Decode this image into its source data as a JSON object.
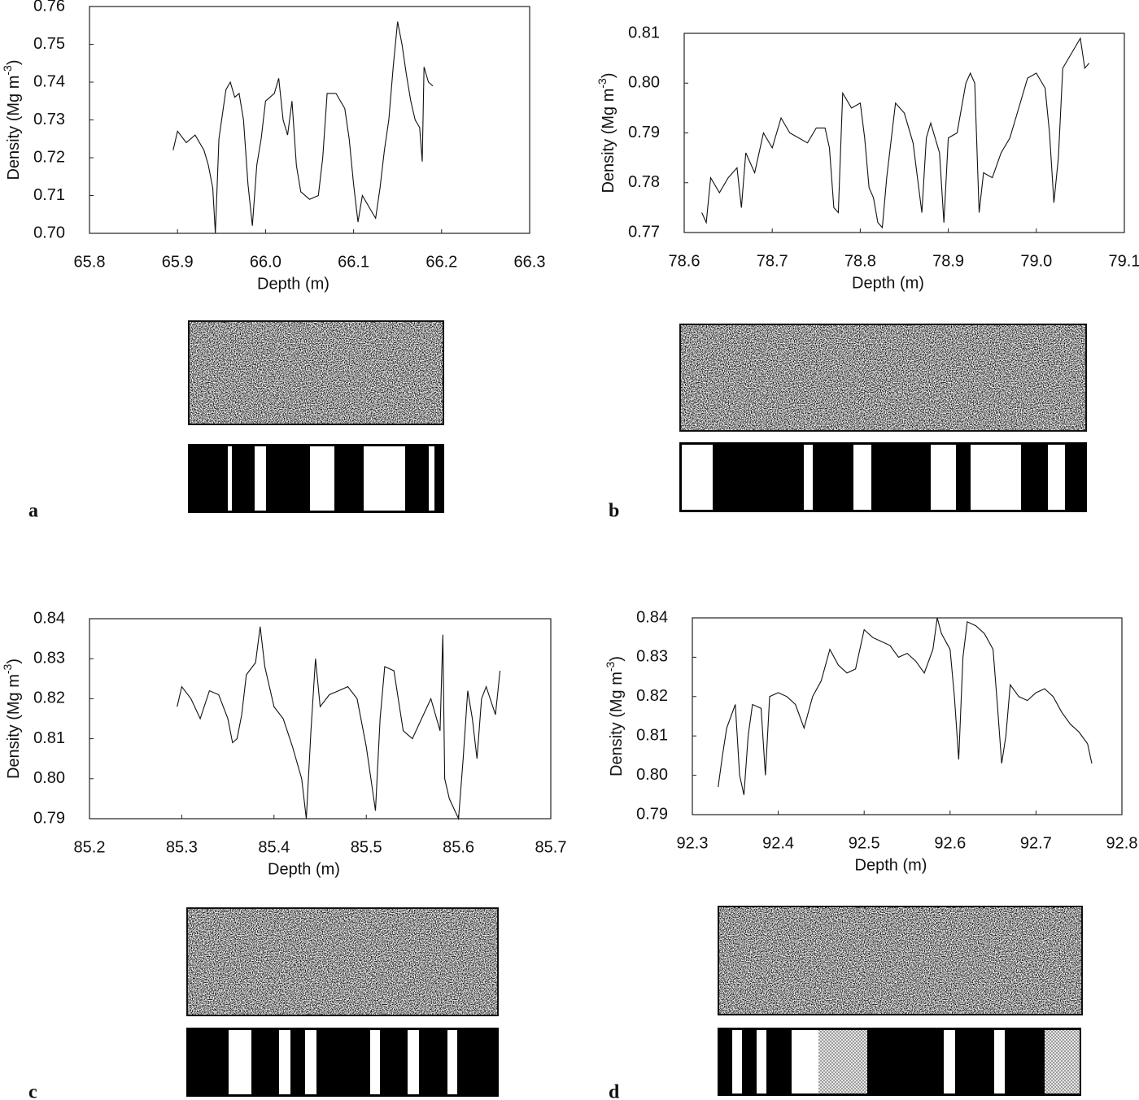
{
  "chart_data": [
    {
      "type": "line",
      "panel_label": "a",
      "xlabel": "Depth (m)",
      "ylabel": [
        "Density (Mg m",
        "-3",
        ")"
      ],
      "color": "#111111",
      "xlim": [
        65.8,
        66.3
      ],
      "xticks": [
        65.8,
        65.9,
        {
          "value": 66.0,
          "label": "66.0"
        },
        66.1,
        66.2,
        66.3
      ],
      "ylim": [
        0.7,
        0.76
      ],
      "yticks": [
        {
          "value": 0.7,
          "label": "0.70"
        },
        0.71,
        0.72,
        0.73,
        0.74,
        0.75,
        0.76
      ],
      "x": [
        65.895,
        65.9,
        65.91,
        65.92,
        65.93,
        65.935,
        65.94,
        65.943,
        65.947,
        65.955,
        65.96,
        65.965,
        65.97,
        65.975,
        65.98,
        65.985,
        65.99,
        65.995,
        66.0,
        66.01,
        66.015,
        66.02,
        66.025,
        66.03,
        66.035,
        66.04,
        66.05,
        66.06,
        66.065,
        66.07,
        66.08,
        66.09,
        66.095,
        66.1,
        66.105,
        66.11,
        66.12,
        66.125,
        66.13,
        66.135,
        66.14,
        66.145,
        66.15,
        66.155,
        66.16,
        66.165,
        66.17,
        66.175,
        66.178,
        66.18,
        66.185,
        66.19
      ],
      "values": [
        0.722,
        0.727,
        0.724,
        0.726,
        0.722,
        0.718,
        0.712,
        0.7,
        0.725,
        0.738,
        0.74,
        0.736,
        0.737,
        0.73,
        0.713,
        0.702,
        0.718,
        0.725,
        0.735,
        0.737,
        0.741,
        0.73,
        0.726,
        0.735,
        0.718,
        0.711,
        0.709,
        0.71,
        0.72,
        0.737,
        0.737,
        0.733,
        0.725,
        0.713,
        0.703,
        0.71,
        0.706,
        0.704,
        0.712,
        0.722,
        0.73,
        0.744,
        0.756,
        0.75,
        0.742,
        0.735,
        0.73,
        0.728,
        0.719,
        0.744,
        0.74,
        0.739
      ]
    },
    {
      "type": "line",
      "panel_label": "b",
      "xlabel": "Depth (m)",
      "ylabel": [
        "Density (Mg m",
        "-3",
        ")"
      ],
      "color": "#111111",
      "xlim": [
        78.6,
        79.1
      ],
      "xticks": [
        78.6,
        78.7,
        78.8,
        78.9,
        {
          "value": 79.0,
          "label": "79.0"
        },
        79.1
      ],
      "ylim": [
        0.77,
        0.81
      ],
      "yticks": [
        0.77,
        0.78,
        0.79,
        {
          "value": 0.8,
          "label": "0.80"
        },
        0.81
      ],
      "x": [
        78.62,
        78.625,
        78.63,
        78.64,
        78.65,
        78.66,
        78.665,
        78.67,
        78.68,
        78.69,
        78.7,
        78.71,
        78.72,
        78.73,
        78.74,
        78.75,
        78.76,
        78.765,
        78.77,
        78.775,
        78.78,
        78.79,
        78.8,
        78.805,
        78.81,
        78.815,
        78.82,
        78.825,
        78.83,
        78.84,
        78.85,
        78.86,
        78.87,
        78.875,
        78.88,
        78.89,
        78.895,
        78.9,
        78.91,
        78.92,
        78.925,
        78.93,
        78.935,
        78.94,
        78.95,
        78.96,
        78.97,
        78.98,
        78.99,
        79.0,
        79.01,
        79.015,
        79.02,
        79.025,
        79.03,
        79.04,
        79.05,
        79.055,
        79.06
      ],
      "values": [
        0.774,
        0.772,
        0.781,
        0.778,
        0.781,
        0.783,
        0.775,
        0.786,
        0.782,
        0.79,
        0.787,
        0.793,
        0.79,
        0.789,
        0.788,
        0.791,
        0.791,
        0.787,
        0.775,
        0.774,
        0.798,
        0.795,
        0.796,
        0.789,
        0.779,
        0.777,
        0.772,
        0.771,
        0.781,
        0.796,
        0.794,
        0.788,
        0.774,
        0.789,
        0.792,
        0.786,
        0.772,
        0.789,
        0.79,
        0.8,
        0.802,
        0.8,
        0.774,
        0.782,
        0.781,
        0.786,
        0.789,
        0.795,
        0.801,
        0.802,
        0.799,
        0.79,
        0.776,
        0.785,
        0.803,
        0.806,
        0.809,
        0.803,
        0.804
      ]
    },
    {
      "type": "line",
      "panel_label": "c",
      "xlabel": "Depth (m)",
      "ylabel": [
        "Density (Mg m",
        "-3",
        ")"
      ],
      "color": "#111111",
      "xlim": [
        85.2,
        85.7
      ],
      "xticks": [
        85.2,
        85.3,
        85.4,
        85.5,
        85.6,
        85.7
      ],
      "ylim": [
        0.79,
        0.84
      ],
      "yticks": [
        0.79,
        {
          "value": 0.8,
          "label": "0.80"
        },
        0.81,
        0.82,
        0.83,
        0.84
      ],
      "x": [
        85.295,
        85.3,
        85.31,
        85.32,
        85.33,
        85.34,
        85.35,
        85.355,
        85.36,
        85.365,
        85.37,
        85.38,
        85.385,
        85.39,
        85.4,
        85.41,
        85.42,
        85.43,
        85.435,
        85.44,
        85.445,
        85.45,
        85.46,
        85.47,
        85.48,
        85.49,
        85.5,
        85.505,
        85.51,
        85.515,
        85.52,
        85.53,
        85.54,
        85.55,
        85.56,
        85.57,
        85.58,
        85.583,
        85.585,
        85.59,
        85.6,
        85.605,
        85.61,
        85.615,
        85.62,
        85.625,
        85.63,
        85.64,
        85.645
      ],
      "values": [
        0.818,
        0.823,
        0.82,
        0.815,
        0.822,
        0.821,
        0.815,
        0.809,
        0.81,
        0.816,
        0.826,
        0.829,
        0.838,
        0.828,
        0.818,
        0.815,
        0.808,
        0.8,
        0.79,
        0.812,
        0.83,
        0.818,
        0.821,
        0.822,
        0.823,
        0.82,
        0.808,
        0.8,
        0.792,
        0.815,
        0.828,
        0.827,
        0.812,
        0.81,
        0.815,
        0.82,
        0.812,
        0.836,
        0.8,
        0.795,
        0.79,
        0.805,
        0.822,
        0.815,
        0.805,
        0.82,
        0.823,
        0.816,
        0.827
      ]
    },
    {
      "type": "line",
      "panel_label": "d",
      "xlabel": "Depth (m)",
      "ylabel": [
        "Density (Mg m",
        "-3",
        ")"
      ],
      "color": "#111111",
      "xlim": [
        92.3,
        92.8
      ],
      "xticks": [
        92.3,
        92.4,
        92.5,
        92.6,
        92.7,
        92.8
      ],
      "ylim": [
        0.79,
        0.84
      ],
      "yticks": [
        0.79,
        {
          "value": 0.8,
          "label": "0.80"
        },
        0.81,
        0.82,
        0.83,
        0.84
      ],
      "x": [
        92.33,
        92.335,
        92.34,
        92.35,
        92.355,
        92.36,
        92.365,
        92.37,
        92.38,
        92.385,
        92.39,
        92.4,
        92.41,
        92.42,
        92.43,
        92.44,
        92.45,
        92.46,
        92.47,
        92.48,
        92.49,
        92.5,
        92.51,
        92.52,
        92.53,
        92.54,
        92.55,
        92.56,
        92.57,
        92.58,
        92.585,
        92.59,
        92.6,
        92.605,
        92.61,
        92.615,
        92.62,
        92.63,
        92.64,
        92.65,
        92.655,
        92.66,
        92.665,
        92.67,
        92.68,
        92.69,
        92.7,
        92.71,
        92.72,
        92.73,
        92.74,
        92.75,
        92.76,
        92.765
      ],
      "values": [
        0.797,
        0.805,
        0.812,
        0.818,
        0.8,
        0.795,
        0.81,
        0.818,
        0.817,
        0.8,
        0.82,
        0.821,
        0.82,
        0.818,
        0.812,
        0.82,
        0.824,
        0.832,
        0.828,
        0.826,
        0.827,
        0.837,
        0.835,
        0.834,
        0.833,
        0.83,
        0.831,
        0.829,
        0.826,
        0.832,
        0.84,
        0.836,
        0.832,
        0.82,
        0.804,
        0.83,
        0.839,
        0.838,
        0.836,
        0.832,
        0.818,
        0.803,
        0.81,
        0.823,
        0.82,
        0.819,
        0.821,
        0.822,
        0.82,
        0.816,
        0.813,
        0.811,
        0.808,
        0.803
      ]
    }
  ]
}
